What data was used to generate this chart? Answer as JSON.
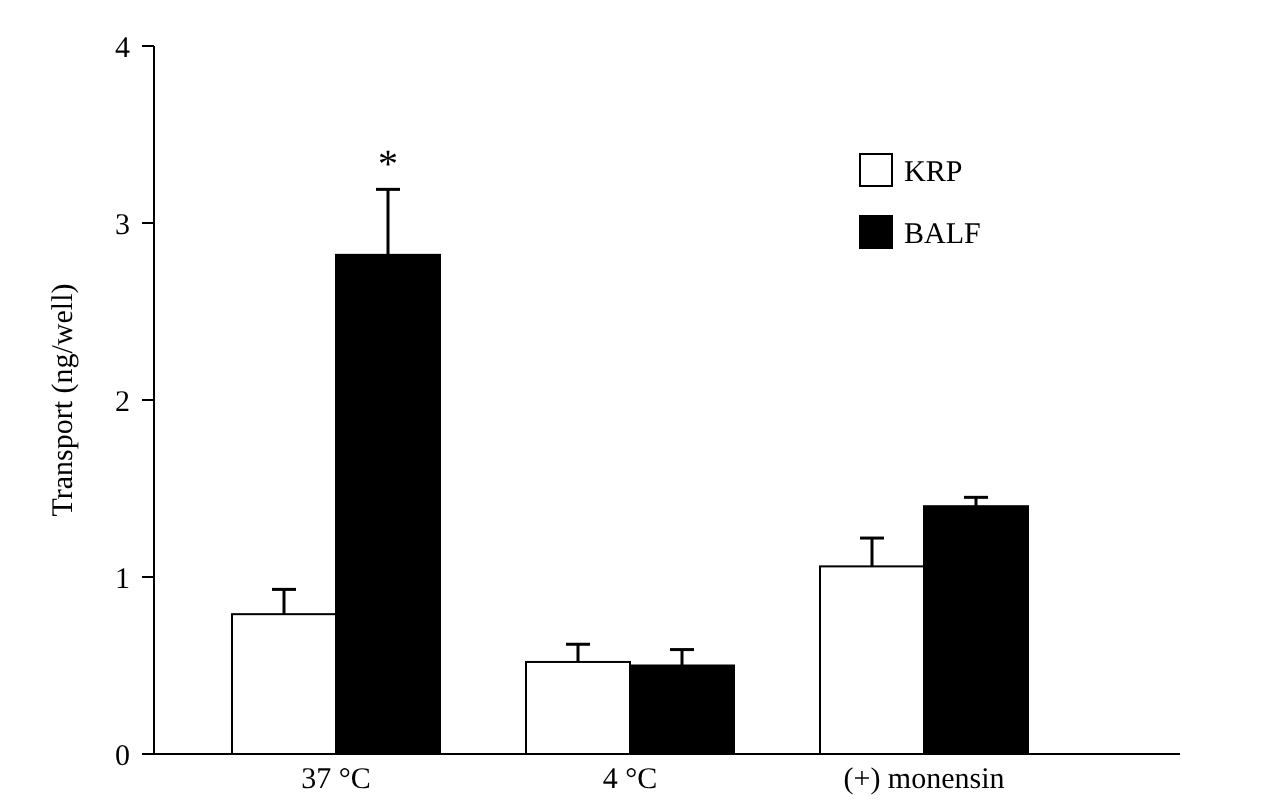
{
  "chart_data": {
    "type": "bar",
    "ylabel": "Transport (ng/well)",
    "categories": [
      "37 °C",
      "4 °C",
      "(+) monensin"
    ],
    "series": [
      {
        "name": "KRP",
        "color": "#ffffff",
        "values": [
          0.79,
          0.52,
          1.06
        ],
        "errors": [
          [
            0.79,
            0.93
          ],
          [
            0.52,
            0.62
          ],
          [
            1.06,
            1.22
          ]
        ]
      },
      {
        "name": "BALF",
        "color": "#000000",
        "values": [
          2.82,
          0.5,
          1.4
        ],
        "errors": [
          [
            2.82,
            3.19
          ],
          [
            0.5,
            0.59
          ],
          [
            1.4,
            1.45
          ]
        ]
      }
    ],
    "ylim": [
      0,
      4
    ],
    "yticks": [
      0,
      1,
      2,
      3,
      4
    ],
    "grid": false,
    "legend": "top right",
    "annotations": [
      "*"
    ]
  }
}
